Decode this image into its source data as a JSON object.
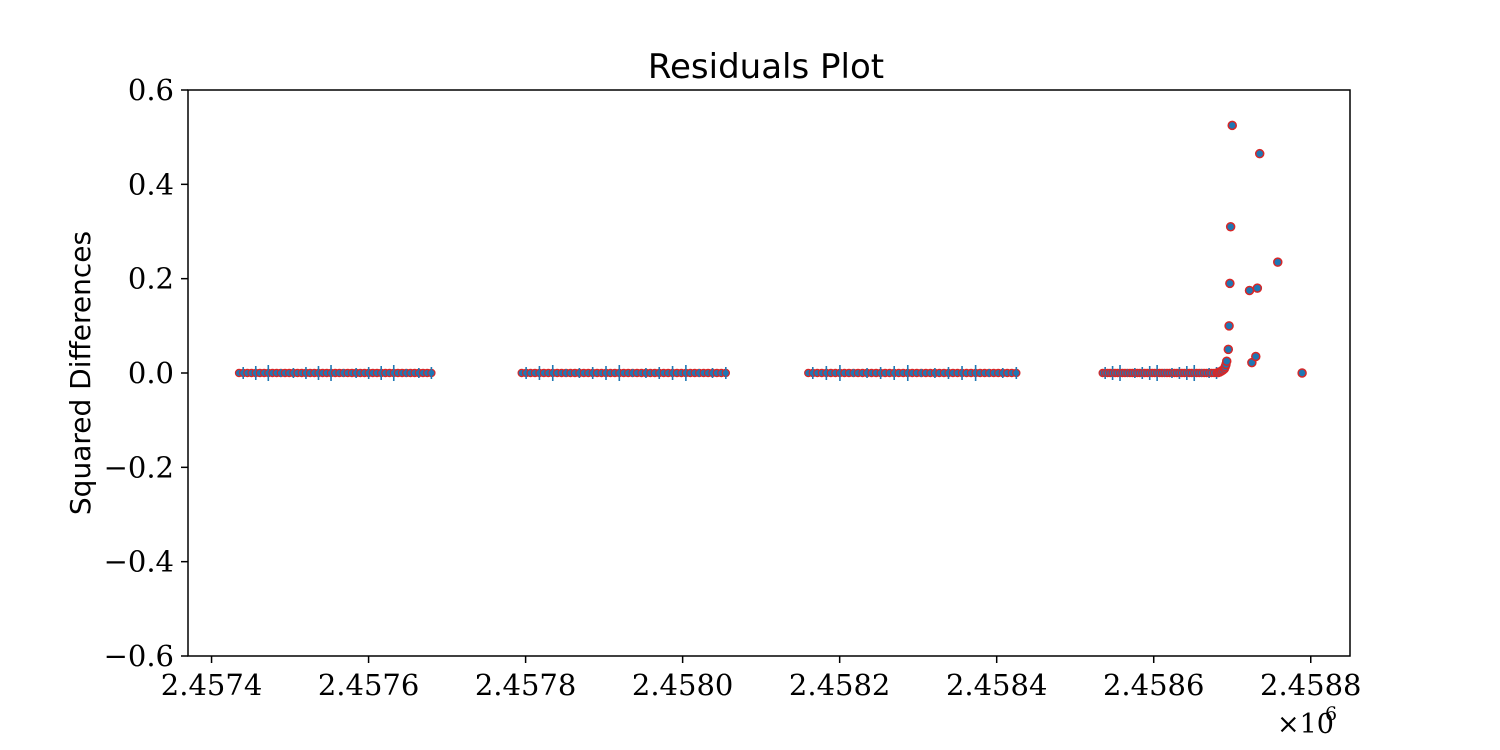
{
  "chart_data": {
    "type": "scatter",
    "title": "Residuals Plot",
    "xlabel": "",
    "ylabel": "Squared Differences",
    "xlim": [
      2457370,
      2458850
    ],
    "ylim": [
      -0.6,
      0.6
    ],
    "x_offset_label": "×10",
    "x_offset_exponent": "6",
    "xticks": [
      2457400,
      2457600,
      2457800,
      2458000,
      2458200,
      2458400,
      2458600,
      2458800
    ],
    "xtick_labels": [
      "2.4574",
      "2.4576",
      "2.4578",
      "2.4580",
      "2.4582",
      "2.4584",
      "2.4586",
      "2.4588"
    ],
    "yticks": [
      -0.6,
      -0.4,
      -0.2,
      0.0,
      0.2,
      0.4,
      0.6
    ],
    "ytick_labels": [
      "−0.6",
      "−0.4",
      "−0.2",
      "0.0",
      "0.2",
      "0.4",
      "0.6"
    ],
    "grid": false,
    "marker_color": "#1f77b4",
    "marker_edge_color": "#d62728",
    "clusters": [
      {
        "x_start": 2457435,
        "x_end": 2457680,
        "y": 0.0
      },
      {
        "x_start": 2457795,
        "x_end": 2458055,
        "y": 0.0
      },
      {
        "x_start": 2458160,
        "x_end": 2458425,
        "y": 0.0
      },
      {
        "x_start": 2458535,
        "x_end": 2458680,
        "y": 0.0
      }
    ],
    "points": [
      {
        "x": 2458682,
        "y": 0.001
      },
      {
        "x": 2458684,
        "y": 0.002
      },
      {
        "x": 2458686,
        "y": 0.004
      },
      {
        "x": 2458688,
        "y": 0.006
      },
      {
        "x": 2458690,
        "y": 0.009
      },
      {
        "x": 2458691,
        "y": 0.013
      },
      {
        "x": 2458692,
        "y": 0.018
      },
      {
        "x": 2458693,
        "y": 0.025
      },
      {
        "x": 2458695,
        "y": 0.05
      },
      {
        "x": 2458696,
        "y": 0.1
      },
      {
        "x": 2458697,
        "y": 0.19
      },
      {
        "x": 2458698,
        "y": 0.31
      },
      {
        "x": 2458700,
        "y": 0.525
      },
      {
        "x": 2458722,
        "y": 0.175
      },
      {
        "x": 2458725,
        "y": 0.022
      },
      {
        "x": 2458730,
        "y": 0.035
      },
      {
        "x": 2458732,
        "y": 0.18
      },
      {
        "x": 2458735,
        "y": 0.465
      },
      {
        "x": 2458758,
        "y": 0.235
      },
      {
        "x": 2458789,
        "y": 0.0
      }
    ]
  }
}
